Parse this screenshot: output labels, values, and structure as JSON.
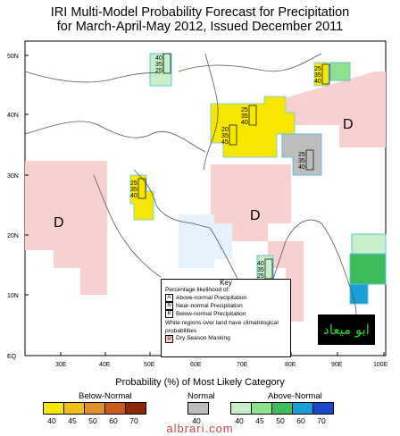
{
  "header": {
    "title_line1": "IRI Multi-Model Probability Forecast for Precipitation",
    "title_line2": "for March-April-May 2012, Issued December 2011"
  },
  "map": {
    "lat_labels": [
      "50N",
      "40N",
      "30N",
      "20N",
      "10N",
      "EQ"
    ],
    "lon_labels": [
      "30E",
      "40E",
      "50E",
      "60E",
      "70E",
      "80E",
      "90E",
      "100E"
    ],
    "dry_season_marks": [
      "D",
      "D",
      "D"
    ],
    "prob_boxes": [
      {
        "values": [
          "40",
          "35",
          "25"
        ]
      },
      {
        "values": [
          "25",
          "35",
          "40"
        ]
      },
      {
        "values": [
          "25",
          "35",
          "40"
        ]
      },
      {
        "values": [
          "20",
          "35",
          "45"
        ]
      },
      {
        "values": [
          "25",
          "35",
          "40"
        ]
      },
      {
        "values": [
          "25",
          "35",
          "40"
        ]
      },
      {
        "values": [
          "40",
          "35",
          "25"
        ]
      }
    ]
  },
  "key": {
    "title": "Key",
    "subtitle": "Percentage likelihood of:",
    "items": [
      {
        "letter": "A",
        "text": "Above-normal Precipitation"
      },
      {
        "letter": "N",
        "text": "Near-normal Precipitation"
      },
      {
        "letter": "B",
        "text": "Below-normal Precipitation"
      }
    ],
    "note": "White regions over land have climatological probabilities",
    "dry_letter": "D",
    "dry_text": "Dry Season Masking"
  },
  "logo_text": "ابو ميعاد",
  "legend": {
    "title": "Probability (%) of Most Likely Category",
    "below_label": "Below-Normal",
    "normal_label": "Normal",
    "above_label": "Above-Normal",
    "below_ticks": [
      "40",
      "45",
      "50",
      "60",
      "70"
    ],
    "normal_ticks": [
      "40"
    ],
    "above_ticks": [
      "40",
      "45",
      "50",
      "60",
      "70"
    ],
    "below_colors": [
      "#f7e600",
      "#f0c020",
      "#e0902a",
      "#c85a1a",
      "#8a2a08"
    ],
    "normal_colors": [
      "#bdbdbd"
    ],
    "above_colors": [
      "#c8f0c8",
      "#8ee28e",
      "#3cbc5a",
      "#1a9ed8",
      "#1a4ac8"
    ]
  },
  "watermark": "albrari.com"
}
